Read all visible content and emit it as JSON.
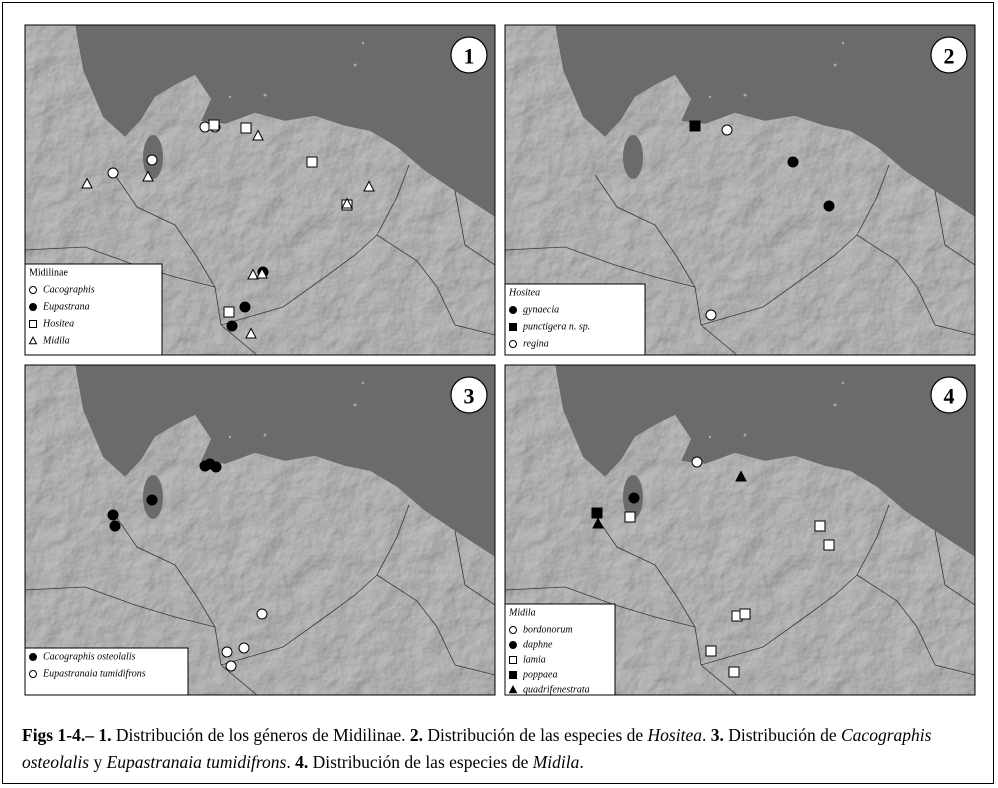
{
  "panels": [
    {
      "number": "1",
      "legend_title": "Midilinae",
      "legend": [
        "Cacographis",
        "Eupastrana",
        "Hositea",
        "Midila"
      ]
    },
    {
      "number": "2",
      "legend_title": "Hositea",
      "legend": [
        "gynaecia",
        "punctigera n. sp.",
        "regina"
      ]
    },
    {
      "number": "3",
      "legend": [
        "Cacographis osteolalis",
        "Eupastranaia tumidifrons"
      ]
    },
    {
      "number": "4",
      "legend_title": "Midila",
      "legend": [
        "bordonorum",
        "daphne",
        "lamia",
        "poppaea",
        "quadrifenestrata"
      ]
    }
  ],
  "caption": [
    "Figs 1-4.– 1.",
    " Distribución de los géneros de Midilinae. ",
    "2.",
    " Distribución de las especies de ",
    "Hositea",
    ". ",
    "3.",
    " Distribución de ",
    "Cacographis osteolalis",
    " y ",
    "Eupastranaia tumidifrons",
    ". ",
    "4.",
    " Distribución de las especies de ",
    "Midila",
    "."
  ]
}
